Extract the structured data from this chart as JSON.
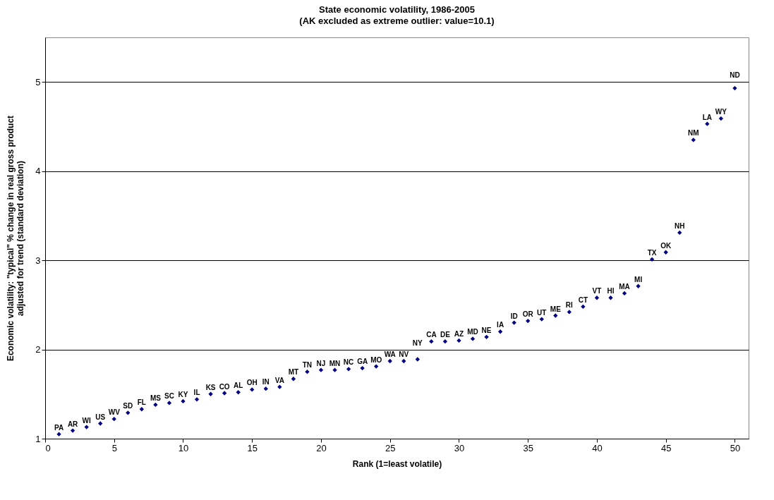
{
  "chart_data": {
    "type": "scatter",
    "title": "State economic volatility, 1986-2005",
    "subtitle": "(AK excluded as extreme outlier: value=10.1)",
    "xlabel": "Rank (1=least volatile)",
    "ylabel": "Economic volatility: \"typical\" % change in real gross product adjusted for trend (standard deviation)",
    "x": [
      1,
      2,
      3,
      4,
      5,
      6,
      7,
      8,
      9,
      10,
      11,
      12,
      13,
      14,
      15,
      16,
      17,
      18,
      19,
      20,
      21,
      22,
      23,
      24,
      25,
      26,
      27,
      28,
      29,
      30,
      31,
      32,
      33,
      34,
      35,
      36,
      37,
      38,
      39,
      40,
      41,
      42,
      43,
      44,
      45,
      46,
      47,
      48,
      49,
      50
    ],
    "series": [
      {
        "color": "#000080",
        "values": [
          1.05,
          1.09,
          1.13,
          1.17,
          1.22,
          1.29,
          1.33,
          1.38,
          1.4,
          1.42,
          1.44,
          1.5,
          1.51,
          1.52,
          1.55,
          1.56,
          1.58,
          1.67,
          1.75,
          1.77,
          1.77,
          1.78,
          1.79,
          1.81,
          1.87,
          1.87,
          1.89,
          2.09,
          2.09,
          2.1,
          2.12,
          2.14,
          2.2,
          2.3,
          2.32,
          2.34,
          2.38,
          2.42,
          2.48,
          2.58,
          2.58,
          2.63,
          2.71,
          3.01,
          3.09,
          3.31,
          4.35,
          4.53,
          4.59,
          4.93
        ]
      }
    ],
    "annotations": [
      {
        "text": "PA",
        "x": 1,
        "y": 1.05
      },
      {
        "text": "AR",
        "x": 2,
        "y": 1.09
      },
      {
        "text": "WI",
        "x": 3,
        "y": 1.13
      },
      {
        "text": "US",
        "x": 4,
        "y": 1.17
      },
      {
        "text": "WV",
        "x": 5,
        "y": 1.22
      },
      {
        "text": "SD",
        "x": 6,
        "y": 1.29
      },
      {
        "text": "FL",
        "x": 7,
        "y": 1.33
      },
      {
        "text": "MS",
        "x": 8,
        "y": 1.38
      },
      {
        "text": "SC",
        "x": 9,
        "y": 1.4
      },
      {
        "text": "KY",
        "x": 10,
        "y": 1.42
      },
      {
        "text": "IL",
        "x": 11,
        "y": 1.44
      },
      {
        "text": "KS",
        "x": 12,
        "y": 1.5
      },
      {
        "text": "CO",
        "x": 13,
        "y": 1.51
      },
      {
        "text": "AL",
        "x": 14,
        "y": 1.52
      },
      {
        "text": "OH",
        "x": 15,
        "y": 1.55
      },
      {
        "text": "IN",
        "x": 16,
        "y": 1.56
      },
      {
        "text": "VA",
        "x": 17,
        "y": 1.58
      },
      {
        "text": "MT",
        "x": 18,
        "y": 1.67
      },
      {
        "text": "TN",
        "x": 19,
        "y": 1.75
      },
      {
        "text": "NJ",
        "x": 20,
        "y": 1.77
      },
      {
        "text": "MN",
        "x": 21,
        "y": 1.77
      },
      {
        "text": "NC",
        "x": 22,
        "y": 1.78
      },
      {
        "text": "GA",
        "x": 23,
        "y": 1.79
      },
      {
        "text": "MO",
        "x": 24,
        "y": 1.81
      },
      {
        "text": "WA",
        "x": 25,
        "y": 1.87
      },
      {
        "text": "NV",
        "x": 26,
        "y": 1.87
      },
      {
        "text": "NY",
        "x": 27,
        "y": 1.89
      },
      {
        "text": "CA",
        "x": 28,
        "y": 2.09
      },
      {
        "text": "DE",
        "x": 29,
        "y": 2.09
      },
      {
        "text": "AZ",
        "x": 30,
        "y": 2.1
      },
      {
        "text": "MD",
        "x": 31,
        "y": 2.12
      },
      {
        "text": "NE",
        "x": 32,
        "y": 2.14
      },
      {
        "text": "IA",
        "x": 33,
        "y": 2.2
      },
      {
        "text": "ID",
        "x": 34,
        "y": 2.3
      },
      {
        "text": "OR",
        "x": 35,
        "y": 2.32
      },
      {
        "text": "UT",
        "x": 36,
        "y": 2.34
      },
      {
        "text": "ME",
        "x": 37,
        "y": 2.38
      },
      {
        "text": "RI",
        "x": 38,
        "y": 2.42
      },
      {
        "text": "CT",
        "x": 39,
        "y": 2.48
      },
      {
        "text": "VT",
        "x": 40,
        "y": 2.58
      },
      {
        "text": "HI",
        "x": 41,
        "y": 2.58
      },
      {
        "text": "MA",
        "x": 42,
        "y": 2.63
      },
      {
        "text": "MI",
        "x": 43,
        "y": 2.71
      },
      {
        "text": "TX",
        "x": 44,
        "y": 3.01
      },
      {
        "text": "OK",
        "x": 45,
        "y": 3.09
      },
      {
        "text": "NH",
        "x": 46,
        "y": 3.31
      },
      {
        "text": "NM",
        "x": 47,
        "y": 4.35
      },
      {
        "text": "LA",
        "x": 48,
        "y": 4.53
      },
      {
        "text": "WY",
        "x": 49,
        "y": 4.59
      },
      {
        "text": "ND",
        "x": 50,
        "y": 4.93
      }
    ],
    "xlim": [
      0,
      51
    ],
    "xticks": [
      0,
      5,
      10,
      15,
      20,
      25,
      30,
      35,
      40,
      45,
      50
    ],
    "ylim": [
      1,
      5.5
    ],
    "yticks": [
      1,
      2,
      3,
      4,
      5
    ],
    "grid": "y",
    "marker": "diamond"
  }
}
